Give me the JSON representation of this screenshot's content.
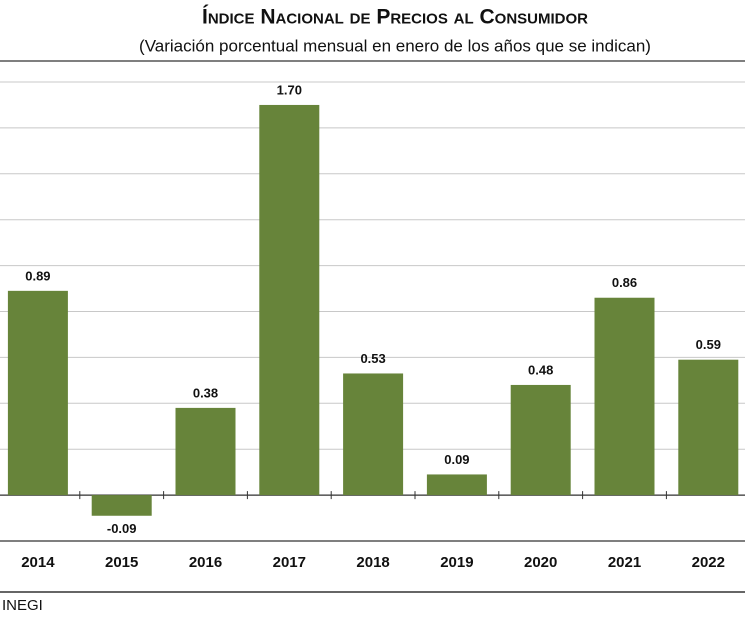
{
  "chart_data": {
    "type": "bar",
    "title": "Índice Nacional de Precios al Consumidor",
    "subtitle": "(Variación porcentual mensual en enero de los años que se indican)",
    "categories": [
      "2014",
      "2015",
      "2016",
      "2017",
      "2018",
      "2019",
      "2020",
      "2021",
      "2022"
    ],
    "values": [
      0.89,
      -0.09,
      0.38,
      1.7,
      0.53,
      0.09,
      0.48,
      0.86,
      0.59
    ],
    "value_labels": [
      "0.89",
      "-0.09",
      "0.38",
      "1.70",
      "0.53",
      "0.09",
      "0.48",
      "0.86",
      "0.59"
    ],
    "color": "#67843a",
    "ylim": [
      -0.2,
      1.8
    ],
    "yticks": [
      0,
      0.2,
      0.4,
      0.6,
      0.8,
      1,
      1.2,
      1.4,
      1.6,
      1.8
    ],
    "grid": true,
    "source": "INEGI"
  }
}
